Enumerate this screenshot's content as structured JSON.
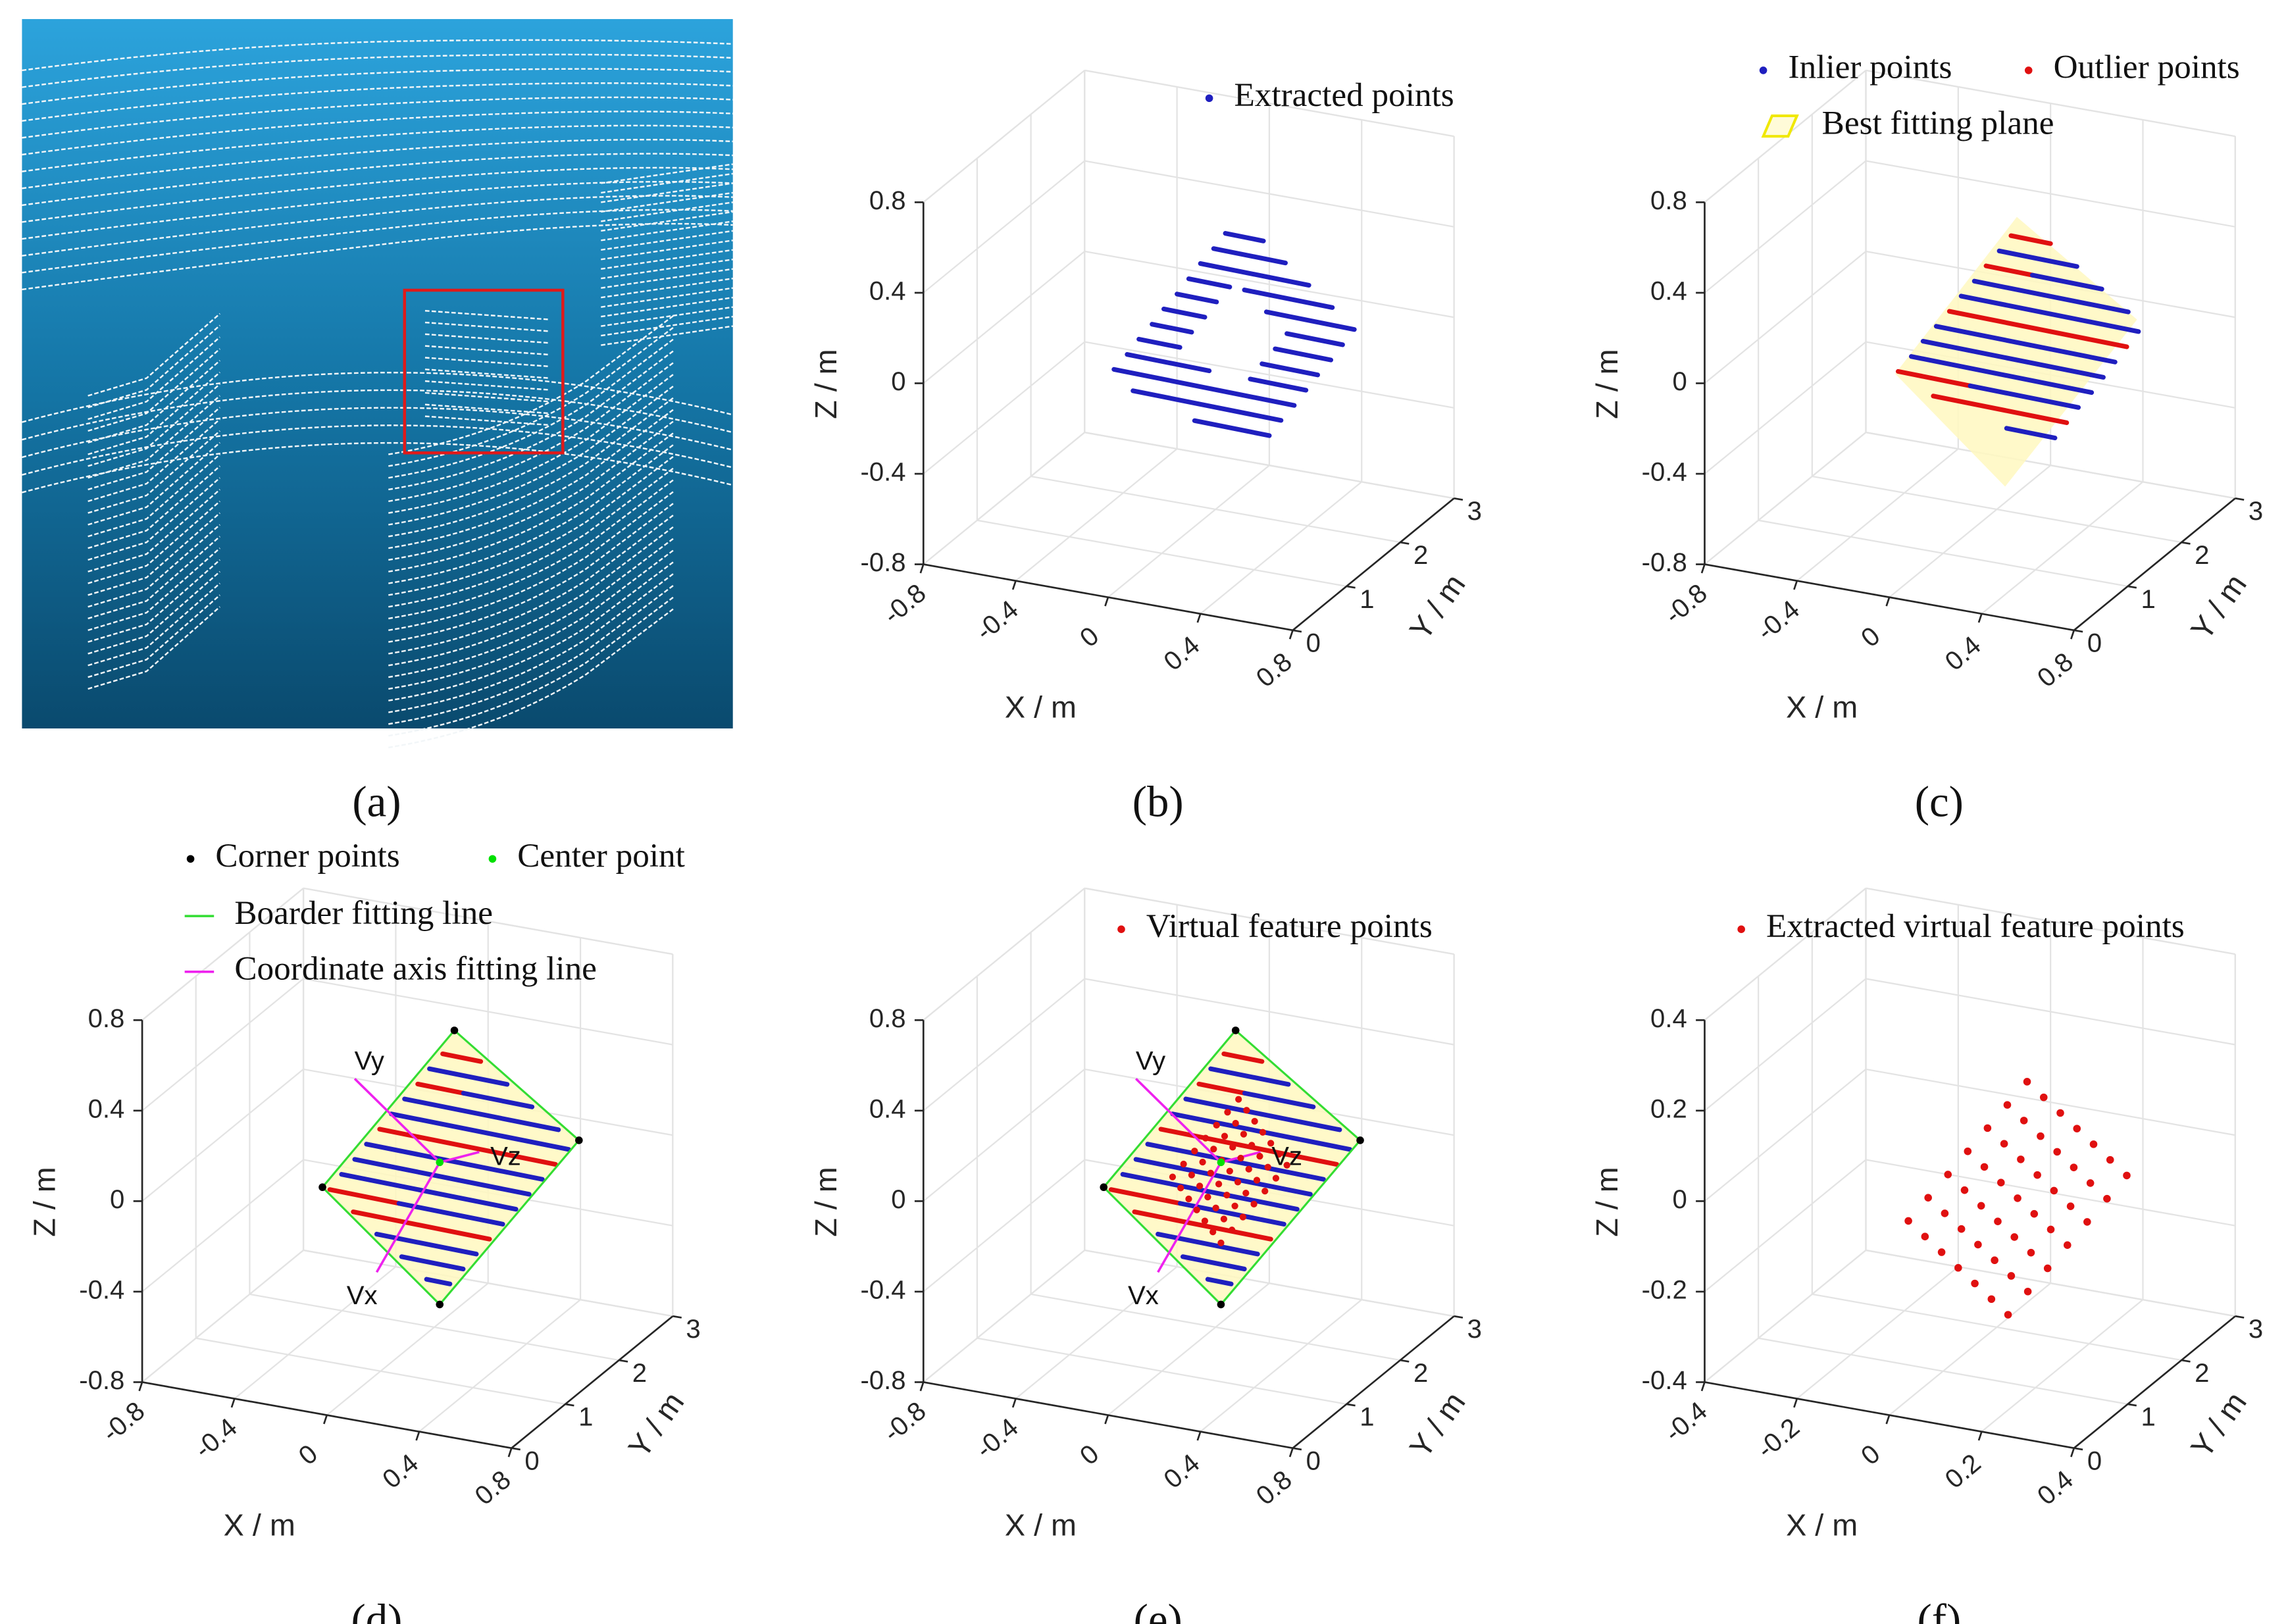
{
  "image_panel": {
    "caption": "(a)"
  },
  "chart_data": [
    {
      "type": "scatter3d",
      "caption": "(b)",
      "xlabel": "X / m",
      "ylabel": "Y / m",
      "zlabel": "Z / m",
      "xlim": [
        -0.8,
        0.8
      ],
      "ylim": [
        0,
        3
      ],
      "zlim": [
        -0.8,
        0.8
      ],
      "xticks": [
        -0.8,
        -0.4,
        0,
        0.4,
        0.8
      ],
      "yticks": [
        0,
        1,
        2,
        3
      ],
      "zticks": [
        -0.8,
        -0.4,
        0,
        0.4,
        0.8
      ],
      "grid": true,
      "legend": [
        {
          "name": "Extracted points",
          "color": "#1f1fbf",
          "marker": "dot"
        }
      ]
    },
    {
      "type": "scatter3d",
      "caption": "(c)",
      "xlabel": "X / m",
      "ylabel": "Y / m",
      "zlabel": "Z / m",
      "xlim": [
        -0.8,
        0.8
      ],
      "ylim": [
        0,
        3
      ],
      "zlim": [
        -0.8,
        0.8
      ],
      "xticks": [
        -0.8,
        -0.4,
        0,
        0.4,
        0.8
      ],
      "yticks": [
        0,
        1,
        2,
        3
      ],
      "zticks": [
        -0.8,
        -0.4,
        0,
        0.4,
        0.8
      ],
      "grid": true,
      "legend": [
        {
          "name": "Inlier points",
          "color": "#1f1fbf",
          "marker": "dot"
        },
        {
          "name": "Outlier points",
          "color": "#e01010",
          "marker": "dot"
        },
        {
          "name": "Best fitting plane",
          "color": "#f0e800",
          "marker": "plane"
        }
      ]
    },
    {
      "type": "scatter3d",
      "caption": "(d)",
      "xlabel": "X / m",
      "ylabel": "Y / m",
      "zlabel": "Z / m",
      "xlim": [
        -0.8,
        0.8
      ],
      "ylim": [
        0,
        3
      ],
      "zlim": [
        -0.8,
        0.8
      ],
      "xticks": [
        -0.8,
        -0.4,
        0,
        0.4,
        0.8
      ],
      "yticks": [
        0,
        1,
        2,
        3
      ],
      "zticks": [
        -0.8,
        -0.4,
        0,
        0.4,
        0.8
      ],
      "grid": true,
      "legend": [
        {
          "name": "Corner points",
          "color": "#000000",
          "marker": "dot"
        },
        {
          "name": "Center point",
          "color": "#00e000",
          "marker": "dot"
        },
        {
          "name": "Boarder fitting line",
          "color": "#33dd33",
          "marker": "line"
        },
        {
          "name": "Coordinate axis fitting line",
          "color": "#ee22ee",
          "marker": "line"
        }
      ],
      "annotations": [
        "Vx",
        "Vy",
        "Vz"
      ]
    },
    {
      "type": "scatter3d",
      "caption": "(e)",
      "xlabel": "X / m",
      "ylabel": "Y / m",
      "zlabel": "Z / m",
      "xlim": [
        -0.8,
        0.8
      ],
      "ylim": [
        0,
        3
      ],
      "zlim": [
        -0.8,
        0.8
      ],
      "xticks": [
        -0.8,
        -0.4,
        0,
        0.4,
        0.8
      ],
      "yticks": [
        0,
        1,
        2,
        3
      ],
      "zticks": [
        -0.8,
        -0.4,
        0,
        0.4,
        0.8
      ],
      "grid": true,
      "legend": [
        {
          "name": "Virtual feature points",
          "color": "#e01010",
          "marker": "dot"
        }
      ],
      "annotations": [
        "Vx",
        "Vy",
        "Vz"
      ]
    },
    {
      "type": "scatter3d",
      "caption": "(f)",
      "xlabel": "X / m",
      "ylabel": "Y / m",
      "zlabel": "Z / m",
      "xlim": [
        -0.4,
        0.4
      ],
      "ylim": [
        0,
        3
      ],
      "zlim": [
        -0.4,
        0.4
      ],
      "xticks": [
        -0.4,
        -0.2,
        0,
        0.2,
        0.4
      ],
      "yticks": [
        0,
        1,
        2,
        3
      ],
      "zticks": [
        -0.4,
        -0.2,
        0,
        0.2,
        0.4
      ],
      "grid": true,
      "legend": [
        {
          "name": "Extracted virtual feature points",
          "color": "#e01010",
          "marker": "dot"
        }
      ]
    }
  ]
}
